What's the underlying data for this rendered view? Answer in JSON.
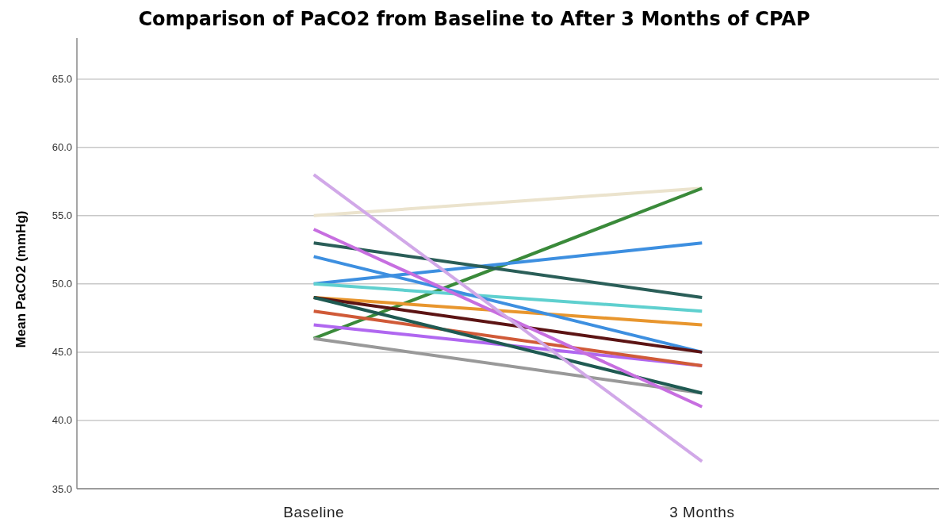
{
  "chart_data": {
    "type": "line",
    "title": "Comparison of PaCO2 from Baseline to After 3 Months of CPAP",
    "ylabel": "Mean PaCO2 (mmHg)",
    "categories": [
      "Baseline",
      "3 Months"
    ],
    "ylim": [
      35,
      68
    ],
    "yticks": [
      {
        "value": 35,
        "label": "35.0"
      },
      {
        "value": 40,
        "label": "40.0"
      },
      {
        "value": 45,
        "label": "45.0"
      },
      {
        "value": 50,
        "label": "50.0"
      },
      {
        "value": 55,
        "label": "55.0"
      },
      {
        "value": 60,
        "label": "60.0"
      },
      {
        "value": 65,
        "label": "65.0"
      }
    ],
    "grid": "y",
    "marker": "none",
    "line_style": "solid",
    "series": [
      {
        "color": "#ebe3cd",
        "values": [
          55,
          57
        ]
      },
      {
        "color": "#3a8a3a",
        "values": [
          46,
          57
        ]
      },
      {
        "color": "#3d8fe0",
        "values": [
          50,
          53
        ]
      },
      {
        "color": "#2a5e58",
        "values": [
          53,
          49
        ]
      },
      {
        "color": "#5fd0cf",
        "values": [
          50,
          48
        ]
      },
      {
        "color": "#e8962e",
        "values": [
          49,
          47
        ]
      },
      {
        "color": "#3d8fe0",
        "values": [
          52,
          45
        ]
      },
      {
        "color": "#5c1414",
        "values": [
          49,
          45
        ]
      },
      {
        "color": "#b067f0",
        "values": [
          47,
          44
        ]
      },
      {
        "color": "#d05a38",
        "values": [
          48,
          44
        ]
      },
      {
        "color": "#999999",
        "values": [
          46,
          42
        ]
      },
      {
        "color": "#1f5a52",
        "values": [
          49,
          42
        ]
      },
      {
        "color": "#c76ee0",
        "values": [
          54,
          41
        ]
      },
      {
        "color": "#d1a8e8",
        "values": [
          58,
          37
        ]
      }
    ]
  }
}
